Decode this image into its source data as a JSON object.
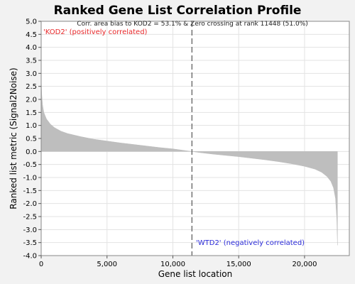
{
  "chart_data": {
    "type": "area",
    "title": "Ranked Gene List Correlation Profile",
    "xlabel": "Gene list location",
    "ylabel": "Ranked list metric (Signal2Noise)",
    "xlim": [
      0,
      23400
    ],
    "ylim": [
      -4.0,
      5.0
    ],
    "x_ticks": [
      {
        "value": 0,
        "label": "0"
      },
      {
        "value": 5000,
        "label": "5,000"
      },
      {
        "value": 10000,
        "label": "10,000"
      },
      {
        "value": 15000,
        "label": "15,000"
      },
      {
        "value": 20000,
        "label": "20,000"
      }
    ],
    "y_ticks": [
      {
        "value": 5.0,
        "label": "5.0"
      },
      {
        "value": 4.5,
        "label": "4.5"
      },
      {
        "value": 4.0,
        "label": "4.0"
      },
      {
        "value": 3.5,
        "label": "3.5"
      },
      {
        "value": 3.0,
        "label": "3.0"
      },
      {
        "value": 2.5,
        "label": "2.5"
      },
      {
        "value": 2.0,
        "label": "2.0"
      },
      {
        "value": 1.5,
        "label": "1.5"
      },
      {
        "value": 1.0,
        "label": "1.0"
      },
      {
        "value": 0.5,
        "label": "0.5"
      },
      {
        "value": 0.0,
        "label": "0.0"
      },
      {
        "value": -0.5,
        "label": "-0.5"
      },
      {
        "value": -1.0,
        "label": "-1.0"
      },
      {
        "value": -1.5,
        "label": "-1.5"
      },
      {
        "value": -2.0,
        "label": "-2.0"
      },
      {
        "value": -2.5,
        "label": "-2.5"
      },
      {
        "value": -3.0,
        "label": "-3.0"
      },
      {
        "value": -3.5,
        "label": "-3.5"
      },
      {
        "value": -4.0,
        "label": "-4.0"
      }
    ],
    "grid": true,
    "zero_crossing_rank": 11448,
    "annotations": {
      "header": "Corr. area bias to KOD2 = 53.1% & Zero crossing at rank 11448 (51.0%)",
      "positive_label": "'KOD2' (positively correlated)",
      "negative_label": "'WTD2' (negatively correlated)"
    },
    "series": [
      {
        "x": [
          0,
          10,
          40,
          100,
          200,
          400,
          700,
          1000,
          1500,
          2000,
          3000,
          4000,
          5000,
          6000,
          7000,
          8000,
          9000,
          10000,
          11000,
          11448,
          12000,
          13000,
          14000,
          15000,
          16000,
          17000,
          18000,
          19000,
          20000,
          20800,
          21300,
          21700,
          22000,
          22200,
          22350,
          22450,
          22500
        ],
        "values": [
          3.1,
          2.7,
          2.2,
          1.8,
          1.5,
          1.25,
          1.05,
          0.92,
          0.78,
          0.69,
          0.57,
          0.47,
          0.4,
          0.33,
          0.27,
          0.21,
          0.15,
          0.1,
          0.03,
          0.0,
          -0.04,
          -0.1,
          -0.15,
          -0.2,
          -0.26,
          -0.32,
          -0.39,
          -0.47,
          -0.57,
          -0.68,
          -0.8,
          -0.96,
          -1.15,
          -1.4,
          -1.8,
          -2.6,
          -3.6
        ]
      }
    ],
    "colors": {
      "fill": "#bebebe",
      "positive_label": "#e8282a",
      "negative_label": "#2b2bd9",
      "zero_line": "#555555",
      "grid": "#e3e3e3"
    }
  }
}
